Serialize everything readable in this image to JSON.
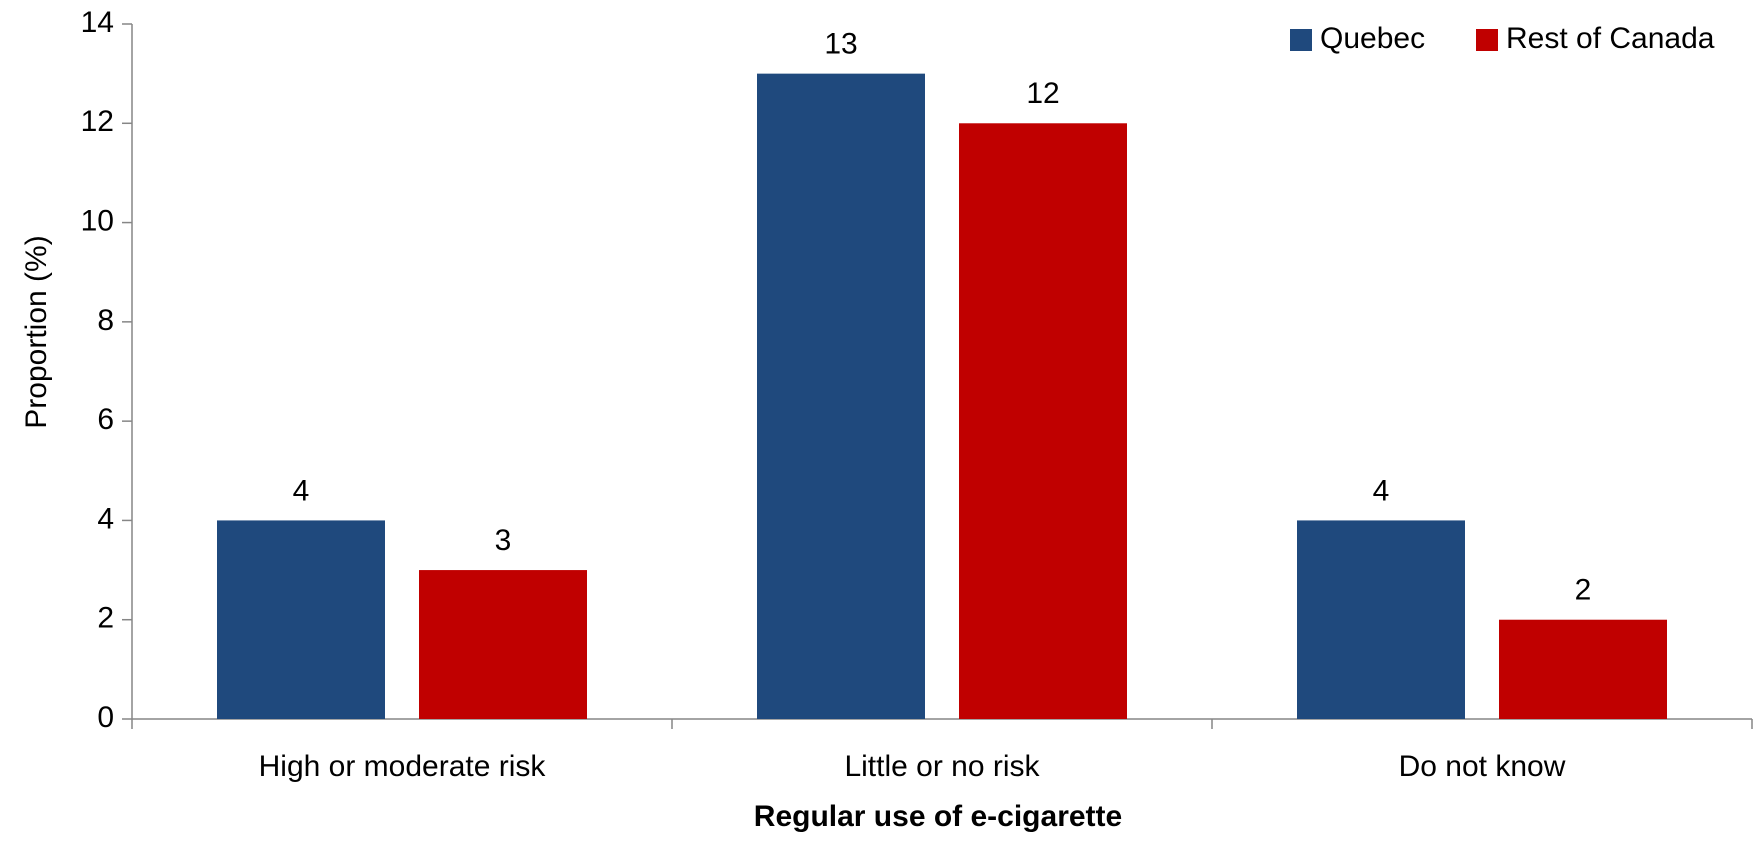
{
  "chart_data": {
    "type": "bar",
    "title": "",
    "xlabel": "Regular use of e-cigarette",
    "ylabel": "Proportion (%)",
    "ylim": [
      0,
      14
    ],
    "yticks": [
      0,
      2,
      4,
      6,
      8,
      10,
      12,
      14
    ],
    "categories": [
      "High or moderate risk",
      "Little or no risk",
      "Do not know"
    ],
    "series": [
      {
        "name": "Quebec",
        "color": "#1F497D",
        "values": [
          4,
          13,
          4
        ]
      },
      {
        "name": "Rest of Canada",
        "color": "#C00000",
        "values": [
          3,
          12,
          2
        ]
      }
    ],
    "grid": false,
    "legend_position": "top-right"
  }
}
